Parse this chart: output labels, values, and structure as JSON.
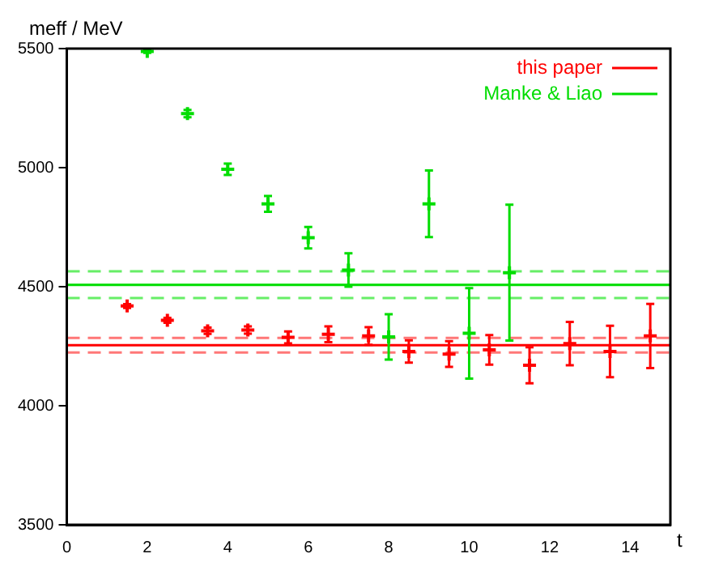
{
  "chart_data": {
    "type": "scatter",
    "xlabel": "t",
    "ylabel": "meff / MeV",
    "xlim": [
      0,
      15
    ],
    "xticks": [
      0,
      2,
      4,
      6,
      8,
      10,
      12,
      14
    ],
    "ylim": [
      3500,
      5500
    ],
    "yticks": [
      3500,
      4000,
      4500,
      5000,
      5500
    ],
    "grid": false,
    "legend": "top right",
    "marker": "cross",
    "series": [
      {
        "name": "this paper",
        "color": "#ff0000",
        "x": [
          1.5,
          2.5,
          3.5,
          4.5,
          5.5,
          6.5,
          7.5,
          8.5,
          9.5,
          10.5,
          11.5,
          12.5,
          13.5,
          14.5
        ],
        "values": [
          4419,
          4359,
          4315,
          4318,
          4287,
          4300,
          4293,
          4228,
          4217,
          4235,
          4170,
          4261,
          4228,
          4293
        ],
        "errors": [
          8,
          10,
          13,
          15,
          25,
          33,
          37,
          47,
          54,
          62,
          76,
          91,
          108,
          135
        ]
      },
      {
        "name": "Manke & Liao",
        "color": "#00dd00",
        "x": [
          2,
          3,
          4,
          5,
          6,
          7,
          8,
          9,
          10,
          11
        ],
        "values": [
          5488,
          5227,
          4993,
          4848,
          4706,
          4570,
          4289,
          4848,
          4304,
          4559
        ],
        "errors": [
          6,
          15,
          24,
          33,
          45,
          70,
          95,
          140,
          190,
          285
        ]
      }
    ],
    "ref_lines": [
      {
        "axis": "y",
        "value": 4508,
        "color": "#00dd00",
        "line_style": "solid"
      },
      {
        "axis": "y",
        "value": 4565,
        "color": "#66ee66",
        "line_style": "dashed"
      },
      {
        "axis": "y",
        "value": 4452,
        "color": "#66ee66",
        "line_style": "dashed"
      },
      {
        "axis": "y",
        "value": 4254,
        "color": "#ff0000",
        "line_style": "solid"
      },
      {
        "axis": "y",
        "value": 4285,
        "color": "#ff7777",
        "line_style": "dashed"
      },
      {
        "axis": "y",
        "value": 4224,
        "color": "#ff7777",
        "line_style": "dashed"
      }
    ]
  }
}
